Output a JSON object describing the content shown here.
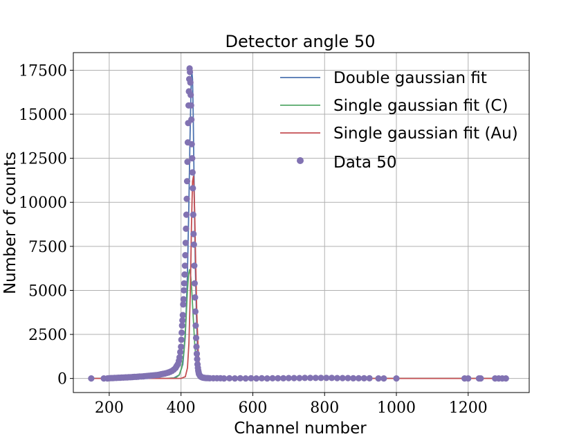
{
  "chart_data": {
    "type": "scatter",
    "title": "Detector angle 50",
    "xlabel": "Channel number",
    "ylabel": "Number of counts",
    "xlim": [
      100,
      1370
    ],
    "ylim": [
      -800,
      18500
    ],
    "xticks": [
      200,
      400,
      600,
      800,
      1000,
      1200
    ],
    "yticks": [
      0,
      2500,
      5000,
      7500,
      10000,
      12500,
      15000,
      17500
    ],
    "grid": true,
    "legend_position": "top-right",
    "colors": {
      "double_fit": "#4c72b0",
      "single_c": "#55a868",
      "single_au": "#c44e52",
      "data": "#8172b2"
    },
    "series": [
      {
        "name": "Double gaussian fit",
        "kind": "line",
        "color": "#4c72b0",
        "x": [
          150,
          300,
          360,
          380,
          395,
          405,
          412,
          418,
          422,
          425,
          428,
          430,
          432,
          434,
          436,
          438,
          440,
          443,
          446,
          450,
          455,
          460,
          470,
          500,
          800,
          1310
        ],
        "y": [
          0,
          0,
          5,
          30,
          200,
          800,
          2400,
          6000,
          10000,
          13500,
          16500,
          17500,
          17000,
          15000,
          12000,
          9000,
          6300,
          3500,
          1700,
          600,
          150,
          30,
          5,
          0,
          0,
          0
        ]
      },
      {
        "name": "Single gaussian fit (C)",
        "kind": "line",
        "color": "#55a868",
        "x": [
          150,
          360,
          385,
          395,
          402,
          408,
          414,
          418,
          421,
          424,
          427,
          430,
          434,
          438,
          443,
          450,
          460,
          475,
          1310
        ],
        "y": [
          0,
          0,
          30,
          200,
          600,
          1500,
          3300,
          5000,
          5900,
          6200,
          5800,
          5000,
          3500,
          2000,
          800,
          200,
          20,
          0,
          0
        ]
      },
      {
        "name": "Single gaussian fit (Au)",
        "kind": "line",
        "color": "#c44e52",
        "x": [
          150,
          400,
          412,
          418,
          422,
          426,
          429,
          432,
          435,
          438,
          441,
          444,
          448,
          452,
          456,
          462,
          475,
          1310
        ],
        "y": [
          0,
          0,
          100,
          600,
          2000,
          5000,
          8500,
          11200,
          11500,
          9500,
          6500,
          3700,
          1500,
          500,
          120,
          20,
          0,
          0
        ]
      },
      {
        "name": "Data 50",
        "kind": "scatter",
        "color": "#8172b2",
        "x": [
          150,
          185,
          195,
          200,
          205,
          210,
          215,
          220,
          225,
          230,
          235,
          240,
          245,
          250,
          255,
          260,
          265,
          270,
          275,
          280,
          285,
          290,
          295,
          300,
          305,
          310,
          315,
          320,
          325,
          330,
          335,
          340,
          345,
          350,
          355,
          360,
          365,
          370,
          375,
          380,
          385,
          388,
          391,
          394,
          396,
          398,
          400,
          401,
          402,
          403,
          404,
          405,
          406,
          407,
          408,
          409,
          410,
          411,
          412,
          413,
          414,
          415,
          416,
          417,
          418,
          419,
          420,
          421,
          422,
          423,
          424,
          425,
          426,
          427,
          428,
          429,
          430,
          431,
          432,
          433,
          434,
          435,
          436,
          437,
          438,
          439,
          440,
          441,
          442,
          443,
          444,
          445,
          446,
          447,
          448,
          449,
          450,
          452,
          454,
          456,
          458,
          460,
          463,
          466,
          470,
          475,
          480,
          490,
          500,
          510,
          520,
          535,
          550,
          565,
          580,
          595,
          610,
          625,
          640,
          655,
          670,
          685,
          700,
          715,
          730,
          745,
          760,
          775,
          790,
          805,
          820,
          835,
          850,
          865,
          880,
          895,
          910,
          925,
          950,
          965,
          1000,
          1190,
          1200,
          1230,
          1235,
          1275,
          1285,
          1295,
          1305
        ],
        "y": [
          0,
          0,
          0,
          10,
          20,
          20,
          30,
          30,
          40,
          40,
          50,
          50,
          60,
          60,
          70,
          70,
          80,
          90,
          90,
          100,
          110,
          110,
          120,
          130,
          140,
          150,
          160,
          170,
          180,
          190,
          200,
          220,
          240,
          260,
          280,
          310,
          340,
          380,
          430,
          500,
          600,
          700,
          800,
          1000,
          1200,
          1500,
          1800,
          2200,
          2600,
          3000,
          3300,
          3600,
          4200,
          4500,
          5000,
          5400,
          5900,
          6400,
          7000,
          7700,
          8500,
          9300,
          10200,
          11200,
          12300,
          13400,
          14500,
          15500,
          16300,
          17000,
          17600,
          17400,
          16800,
          16100,
          15500,
          14700,
          13300,
          12500,
          11700,
          10800,
          9300,
          8200,
          7600,
          6400,
          5400,
          4600,
          3800,
          3000,
          2300,
          1800,
          1400,
          1100,
          800,
          600,
          450,
          350,
          250,
          180,
          120,
          90,
          70,
          50,
          40,
          30,
          20,
          20,
          10,
          10,
          10,
          10,
          0,
          10,
          0,
          10,
          0,
          10,
          0,
          10,
          0,
          10,
          10,
          10,
          20,
          20,
          20,
          30,
          30,
          30,
          30,
          30,
          30,
          20,
          20,
          20,
          10,
          10,
          10,
          10,
          0,
          0,
          0,
          0,
          0,
          0,
          0,
          0,
          0,
          0,
          0
        ]
      }
    ]
  }
}
